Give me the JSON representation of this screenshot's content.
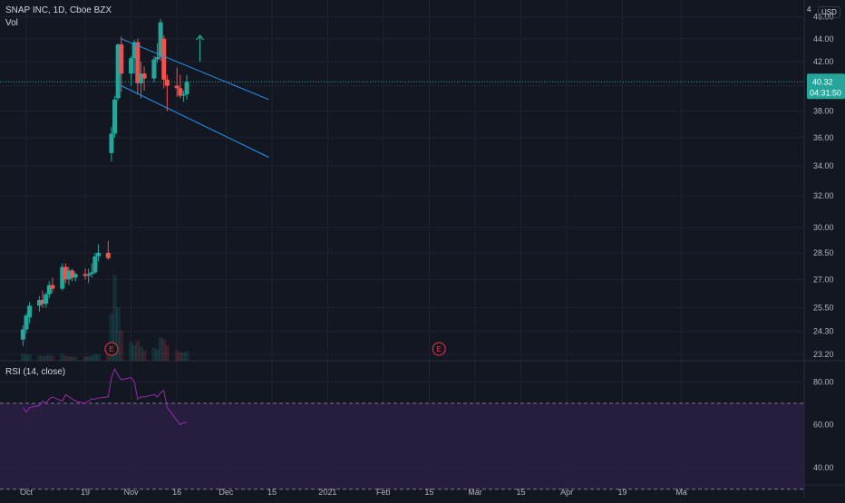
{
  "header": {
    "symbol_line": "SNAP INC, 1D, Cboe BZX",
    "volume_label": "Vol",
    "rsi_label": "RSI (14, close)",
    "currency": "USD",
    "top_tick": "4"
  },
  "price_tag": {
    "value": "40.32",
    "countdown": "04:31:50",
    "color": "#26a69a"
  },
  "colors": {
    "background": "#131722",
    "up": "#26a69a",
    "down": "#ef5350",
    "channel": "#2196f3",
    "arrow": "#22ab94",
    "rsi_line": "#9c27b0",
    "rsi_band": "#2a1e44",
    "earnings": "#f23645"
  },
  "annotations": {
    "earnings_label": "E"
  },
  "chart_data": [
    {
      "type": "candlestick",
      "title": "SNAP INC, 1D, Cboe BZX",
      "y_axis": "log",
      "ylim": [
        22.9,
        47.6
      ],
      "y_ticks": [
        "46.00",
        "44.00",
        "42.00",
        "40.00",
        "38.00",
        "36.00",
        "34.00",
        "32.00",
        "30.00",
        "28.50",
        "27.00",
        "25.50",
        "24.30",
        "23.20"
      ],
      "x_ticks": [
        "Oct",
        "19",
        "Nov",
        "16",
        "Dec",
        "15",
        "2021",
        "Feb",
        "15",
        "Mar",
        "15",
        "Apr",
        "19",
        "Ma"
      ],
      "candles": [
        {
          "d": "2020-09-30",
          "o": 23.9,
          "h": 24.6,
          "l": 23.6,
          "c": 24.4
        },
        {
          "d": "2020-10-01",
          "o": 24.4,
          "h": 25.2,
          "l": 24.2,
          "c": 25.1
        },
        {
          "d": "2020-10-02",
          "o": 25.0,
          "h": 25.8,
          "l": 24.7,
          "c": 25.6
        },
        {
          "d": "2020-10-05",
          "o": 25.6,
          "h": 26.1,
          "l": 25.3,
          "c": 25.9
        },
        {
          "d": "2020-10-06",
          "o": 25.9,
          "h": 26.4,
          "l": 25.5,
          "c": 25.7
        },
        {
          "d": "2020-10-07",
          "o": 25.7,
          "h": 26.3,
          "l": 25.5,
          "c": 26.2
        },
        {
          "d": "2020-10-08",
          "o": 26.2,
          "h": 26.9,
          "l": 26.0,
          "c": 26.7
        },
        {
          "d": "2020-10-09",
          "o": 26.7,
          "h": 27.1,
          "l": 26.3,
          "c": 26.5
        },
        {
          "d": "2020-10-12",
          "o": 26.5,
          "h": 27.9,
          "l": 26.4,
          "c": 27.7
        },
        {
          "d": "2020-10-13",
          "o": 27.7,
          "h": 27.9,
          "l": 26.8,
          "c": 27.0
        },
        {
          "d": "2020-10-14",
          "o": 27.0,
          "h": 27.7,
          "l": 26.7,
          "c": 27.5
        },
        {
          "d": "2020-10-15",
          "o": 27.5,
          "h": 27.6,
          "l": 26.9,
          "c": 27.1
        },
        {
          "d": "2020-10-16",
          "o": 27.1,
          "h": 27.4,
          "l": 26.9,
          "c": 27.3
        },
        {
          "d": "2020-10-19",
          "o": 27.3,
          "h": 27.6,
          "l": 27.0,
          "c": 27.2
        },
        {
          "d": "2020-10-20",
          "o": 27.2,
          "h": 27.6,
          "l": 26.8,
          "c": 27.3
        },
        {
          "d": "2020-10-21",
          "o": 27.3,
          "h": 27.9,
          "l": 27.1,
          "c": 27.4
        },
        {
          "d": "2020-10-22",
          "o": 27.4,
          "h": 28.5,
          "l": 27.3,
          "c": 28.3
        },
        {
          "d": "2020-10-23",
          "o": 28.3,
          "h": 29.0,
          "l": 28.0,
          "c": 28.5
        },
        {
          "d": "2020-10-26",
          "o": 28.5,
          "h": 29.2,
          "l": 28.1,
          "c": 28.2
        },
        {
          "d": "2020-10-27",
          "o": 34.9,
          "h": 36.8,
          "l": 34.3,
          "c": 36.3
        },
        {
          "d": "2020-10-28",
          "o": 36.3,
          "h": 39.2,
          "l": 36.0,
          "c": 38.9
        },
        {
          "d": "2020-10-29",
          "o": 39.0,
          "h": 43.6,
          "l": 38.8,
          "c": 43.5
        },
        {
          "d": "2020-10-30",
          "o": 43.5,
          "h": 44.2,
          "l": 39.5,
          "c": 41.0
        },
        {
          "d": "2020-11-02",
          "o": 41.0,
          "h": 42.5,
          "l": 40.0,
          "c": 42.3
        },
        {
          "d": "2020-11-03",
          "o": 42.3,
          "h": 43.9,
          "l": 41.0,
          "c": 43.7
        },
        {
          "d": "2020-11-04",
          "o": 43.7,
          "h": 44.0,
          "l": 39.3,
          "c": 40.2
        },
        {
          "d": "2020-11-05",
          "o": 40.2,
          "h": 42.0,
          "l": 39.0,
          "c": 41.0
        },
        {
          "d": "2020-11-06",
          "o": 41.0,
          "h": 41.6,
          "l": 39.6,
          "c": 40.6
        },
        {
          "d": "2020-11-09",
          "o": 40.6,
          "h": 42.5,
          "l": 40.3,
          "c": 42.2
        },
        {
          "d": "2020-11-10",
          "o": 42.2,
          "h": 43.6,
          "l": 41.9,
          "c": 42.4
        },
        {
          "d": "2020-11-11",
          "o": 42.4,
          "h": 45.8,
          "l": 42.1,
          "c": 45.5
        },
        {
          "d": "2020-11-12",
          "o": 44.0,
          "h": 44.3,
          "l": 39.8,
          "c": 40.5
        },
        {
          "d": "2020-11-13",
          "o": 40.5,
          "h": 40.9,
          "l": 38.0,
          "c": 40.0
        },
        {
          "d": "2020-11-16",
          "o": 40.0,
          "h": 41.5,
          "l": 39.1,
          "c": 39.8
        },
        {
          "d": "2020-11-17",
          "o": 39.8,
          "h": 40.9,
          "l": 39.0,
          "c": 39.2
        },
        {
          "d": "2020-11-18",
          "o": 39.2,
          "h": 39.6,
          "l": 38.7,
          "c": 39.3
        },
        {
          "d": "2020-11-19",
          "o": 39.3,
          "h": 40.9,
          "l": 38.9,
          "c": 40.32
        }
      ],
      "current_price": 40.32,
      "trend_channel": [
        {
          "from": {
            "d": "2020-10-30",
            "p": 44.0
          },
          "to": {
            "d": "2020-12-14",
            "p": 38.9
          }
        },
        {
          "from": {
            "d": "2020-10-30",
            "p": 40.0
          },
          "to": {
            "d": "2020-12-14",
            "p": 34.6
          }
        }
      ],
      "up_arrow": {
        "d": "2020-11-23",
        "from": 42.0,
        "to": 44.3
      },
      "earnings_marks": [
        "2020-10-27",
        "2021-02-04"
      ]
    },
    {
      "type": "bar",
      "title": "Vol",
      "note": "volume bars overlaid at the bottom of the price pane, relative heights",
      "values": [
        0.08,
        0.07,
        0.07,
        0.06,
        0.05,
        0.06,
        0.07,
        0.05,
        0.08,
        0.06,
        0.05,
        0.05,
        0.04,
        0.05,
        0.05,
        0.06,
        0.08,
        0.07,
        0.09,
        0.55,
        1.0,
        0.62,
        0.35,
        0.22,
        0.18,
        0.24,
        0.16,
        0.12,
        0.15,
        0.13,
        0.27,
        0.25,
        0.18,
        0.12,
        0.1,
        0.09,
        0.11
      ]
    },
    {
      "type": "line",
      "title": "RSI (14, close)",
      "ylim": [
        32,
        89
      ],
      "y_ticks": [
        "80.00",
        "60.00",
        "40.00"
      ],
      "band": [
        30,
        70
      ],
      "values": [
        68,
        66,
        68,
        69,
        71,
        70,
        72,
        73,
        71,
        74,
        73,
        72,
        71,
        70,
        71,
        72,
        72,
        72.5,
        73,
        82,
        86,
        83,
        81,
        82,
        80,
        72,
        73,
        73,
        74,
        73,
        75,
        76,
        68,
        62,
        60,
        61,
        61
      ]
    }
  ]
}
